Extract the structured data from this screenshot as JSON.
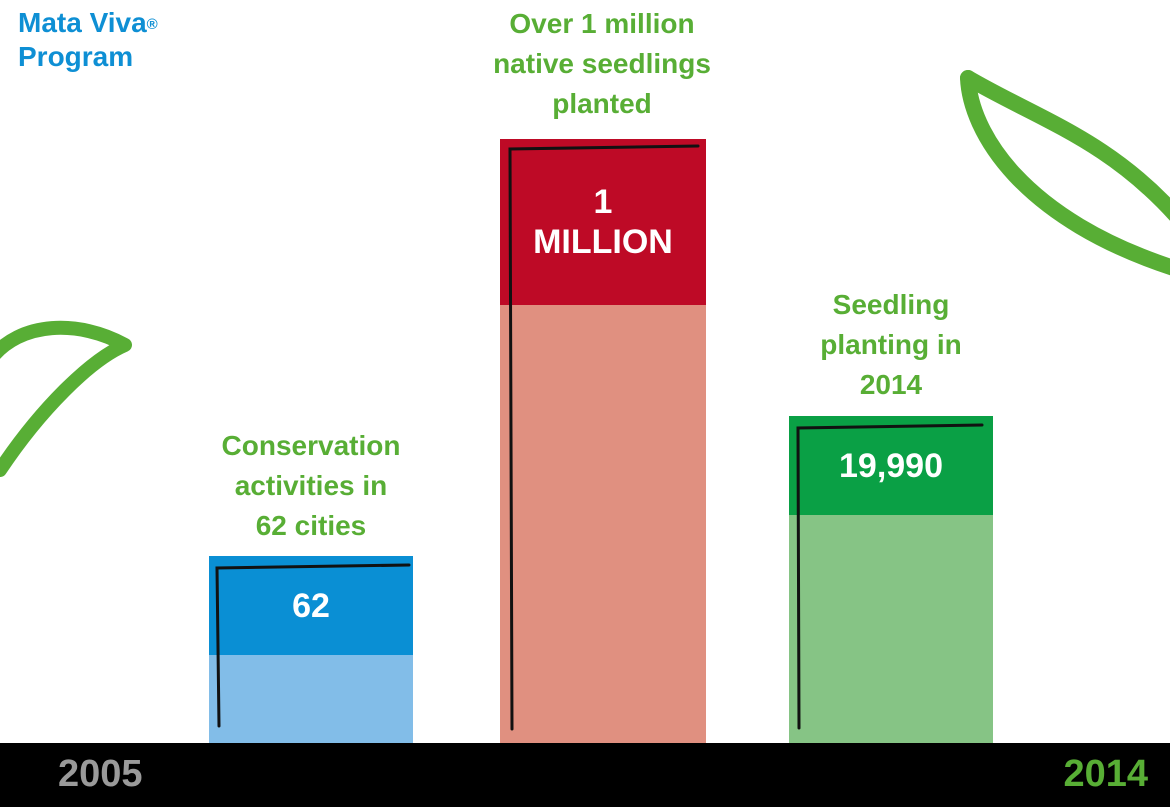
{
  "program_title": {
    "line1": "Mata Viva",
    "reg": "®",
    "line2": "Program"
  },
  "chart_data": {
    "type": "bar",
    "categories": [
      "Conservation activities in 62 cities",
      "Over 1 million native seedlings planted",
      "Seedling planting in 2014"
    ],
    "series": [
      {
        "values": [
          62,
          1000000,
          19990
        ]
      }
    ],
    "bars": [
      {
        "value_label": "62",
        "caption_lines": [
          "Conservation",
          "activities in",
          "62 cities"
        ],
        "top_color": "#0a8fd4",
        "bottom_color": "#82bde8",
        "caption_color": "#58ae35"
      },
      {
        "value_label_lines": [
          "1",
          "MILLION"
        ],
        "caption_lines": [
          "Over 1 million",
          "native seedlings",
          "planted"
        ],
        "top_color": "#be0a26",
        "bottom_color": "#e09080",
        "caption_color": "#58ae35"
      },
      {
        "value_label": "19,990",
        "caption_lines": [
          "Seedling",
          "planting in",
          "2014"
        ],
        "top_color": "#0aa045",
        "bottom_color": "#86c485",
        "caption_color": "#58ae35"
      }
    ],
    "x_axis": {
      "start": "2005",
      "end": "2014"
    },
    "accent_green": "#58ae35",
    "axis_bar_color": "#000000"
  }
}
